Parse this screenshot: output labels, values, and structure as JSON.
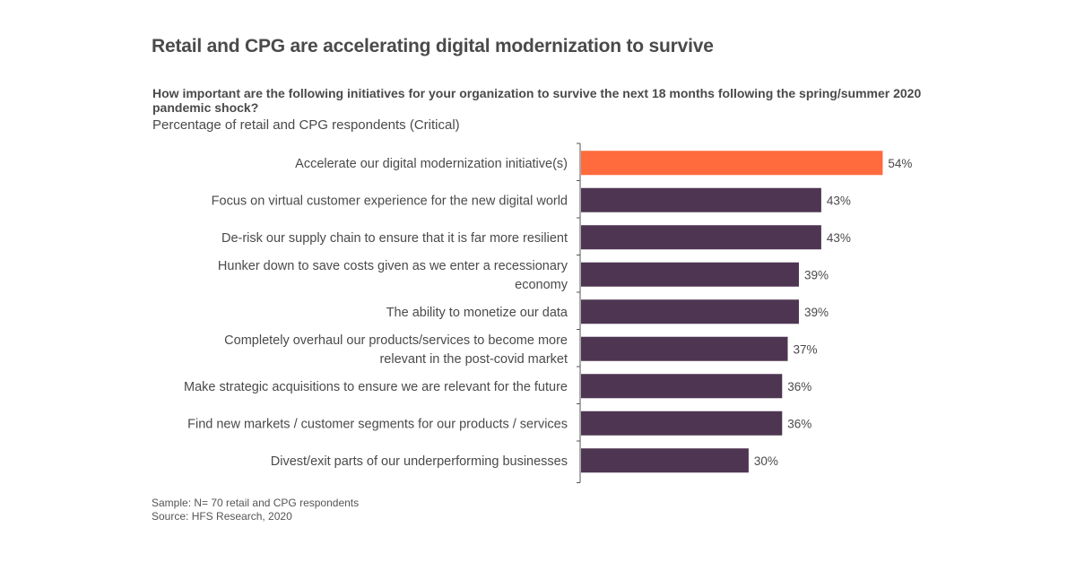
{
  "title": "Retail and CPG are accelerating digital modernization to survive",
  "question": "How important are the following initiatives for your organization to survive the next 18 months following the spring/summer 2020 pandemic shock?",
  "subtitle": "Percentage of retail and CPG respondents (Critical)",
  "footnotes": {
    "sample": "Sample: N= 70 retail and CPG respondents",
    "source": "Source: HFS Research, 2020"
  },
  "colors": {
    "highlight": "#ff6b3d",
    "bar": "#4e3652",
    "axis": "#555555"
  },
  "chart_data": {
    "type": "bar",
    "orientation": "horizontal",
    "categories": [
      [
        "Accelerate our digital modernization initiative(s)"
      ],
      [
        "Focus on virtual customer experience for the new digital world"
      ],
      [
        "De-risk our supply chain to ensure that it is far more resilient"
      ],
      [
        "Hunker down to save costs given as we enter a recessionary",
        "economy"
      ],
      [
        "The ability to monetize our data"
      ],
      [
        "Completely overhaul our products/services to become more",
        "relevant in the post-covid market"
      ],
      [
        "Make strategic acquisitions to ensure we are relevant for the future"
      ],
      [
        "Find new markets / customer segments for our products / services"
      ],
      [
        "Divest/exit parts of our underperforming businesses"
      ]
    ],
    "values": [
      54,
      43,
      43,
      39,
      39,
      37,
      36,
      36,
      30
    ],
    "value_labels": [
      "54%",
      "43%",
      "43%",
      "39%",
      "39%",
      "37%",
      "36%",
      "36%",
      "30%"
    ],
    "highlight_index": 0,
    "xlim": [
      0,
      60
    ],
    "grid": false,
    "legend": "none"
  }
}
